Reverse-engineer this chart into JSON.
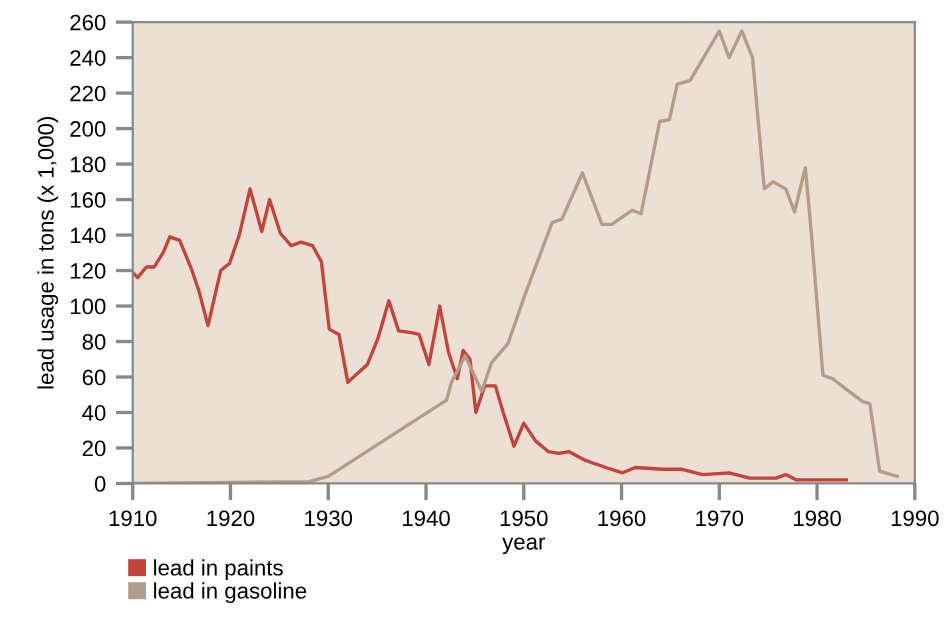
{
  "chart_data": {
    "type": "line",
    "xlabel": "year",
    "ylabel": "lead usage in tons (x 1,000)",
    "xlim": [
      1910,
      1990
    ],
    "xticks": [
      1910,
      1920,
      1930,
      1940,
      1950,
      1960,
      1970,
      1980,
      1990
    ],
    "ylim": [
      0,
      260
    ],
    "yticks": [
      0,
      20,
      40,
      60,
      80,
      100,
      120,
      140,
      160,
      180,
      200,
      220,
      240,
      260
    ],
    "grid": false,
    "legend": "bottom left",
    "marker": "none",
    "line_style": "solid",
    "series": [
      {
        "name": "lead in paints",
        "color": "#c4433a",
        "x": [
          1910,
          1910.5,
          1911.4,
          1912.2,
          1913.1,
          1913.8,
          1914.8,
          1916,
          1916.8,
          1917.7,
          1919,
          1919.9,
          1920.9,
          1922,
          1923.2,
          1924,
          1925.1,
          1926.2,
          1927.2,
          1928.4,
          1929.3,
          1930.1,
          1931.1,
          1932,
          1934,
          1935.1,
          1936.2,
          1937.2,
          1938.5,
          1939.3,
          1940.3,
          1941.4,
          1942.3,
          1943.2,
          1943.8,
          1944.5,
          1945.1,
          1946,
          1947.1,
          1947.9,
          1949,
          1950,
          1951.2,
          1952.5,
          1953.6,
          1954.6,
          1956.3,
          1958.4,
          1960.1,
          1961.4,
          1964.2,
          1966.2,
          1968.3,
          1971,
          1973.1,
          1975.8,
          1976.8,
          1977.9,
          1983
        ],
        "values": [
          119,
          116,
          122,
          122,
          130,
          139,
          137,
          121,
          108,
          89,
          120,
          124,
          140,
          166,
          142,
          160,
          141,
          134,
          136,
          134,
          125,
          87,
          84,
          57,
          67,
          82,
          103,
          86,
          85,
          84,
          67,
          100,
          74,
          59,
          75,
          70,
          40,
          55,
          55,
          40,
          21,
          34,
          24,
          18,
          17,
          18,
          13,
          9,
          6,
          9,
          8,
          8,
          5,
          6,
          3,
          3,
          5,
          2,
          2
        ]
      },
      {
        "name": "lead in gasoline",
        "color": "#b39c8a",
        "x": [
          1910,
          1928,
          1930,
          1942.1,
          1942.6,
          1944,
          1945.7,
          1946.7,
          1948.4,
          1950.1,
          1952.9,
          1953.9,
          1956,
          1958,
          1959,
          1961.1,
          1962,
          1963.9,
          1964.9,
          1965.7,
          1967,
          1970,
          1971,
          1972.3,
          1973.4,
          1974.6,
          1975.5,
          1976.8,
          1977.7,
          1978.8,
          1979.4,
          1980.6,
          1981.6,
          1983,
          1984.7,
          1985.4,
          1986.4,
          1988.2
        ],
        "values": [
          0,
          1,
          4,
          47,
          57,
          72,
          52,
          68,
          79,
          106,
          147,
          149,
          175,
          146,
          146,
          154,
          152,
          204,
          205,
          225,
          227,
          255,
          240,
          255,
          240,
          166,
          170,
          166,
          153,
          178,
          142,
          61,
          59,
          53,
          46,
          45,
          7,
          4
        ]
      }
    ]
  }
}
